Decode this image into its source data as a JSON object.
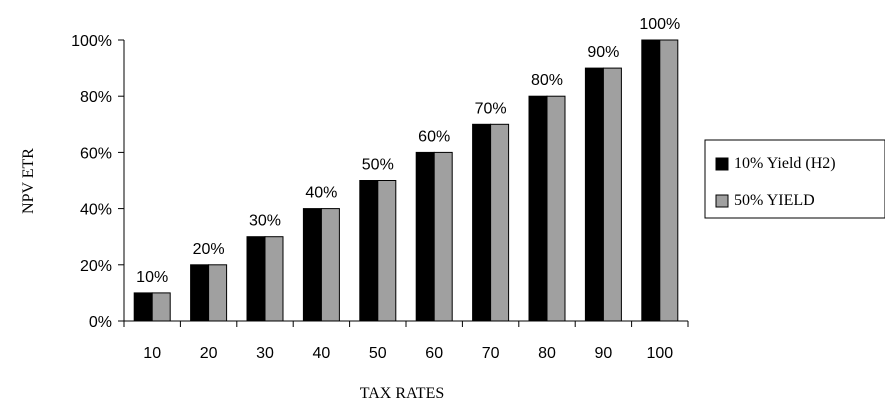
{
  "chart_data": {
    "type": "bar",
    "title": "",
    "xlabel": "TAX RATES",
    "ylabel": "NPV ETR",
    "categories": [
      "10",
      "20",
      "30",
      "40",
      "50",
      "60",
      "70",
      "80",
      "90",
      "100"
    ],
    "series": [
      {
        "name": "10% Yield (H2)",
        "color": "#000000",
        "values": [
          10,
          20,
          30,
          40,
          50,
          60,
          70,
          80,
          90,
          100
        ]
      },
      {
        "name": "50% YIELD",
        "color": "#a0a0a0",
        "values": [
          10,
          20,
          30,
          40,
          50,
          60,
          70,
          80,
          90,
          100
        ]
      }
    ],
    "data_labels": [
      "10%",
      "20%",
      "30%",
      "40%",
      "50%",
      "60%",
      "70%",
      "80%",
      "90%",
      "100%"
    ],
    "yticks": [
      "0%",
      "20%",
      "40%",
      "60%",
      "80%",
      "100%"
    ],
    "ytick_values": [
      0,
      20,
      40,
      60,
      80,
      100
    ],
    "ylim": [
      0,
      100
    ],
    "grid": false,
    "legend_position": "right"
  }
}
